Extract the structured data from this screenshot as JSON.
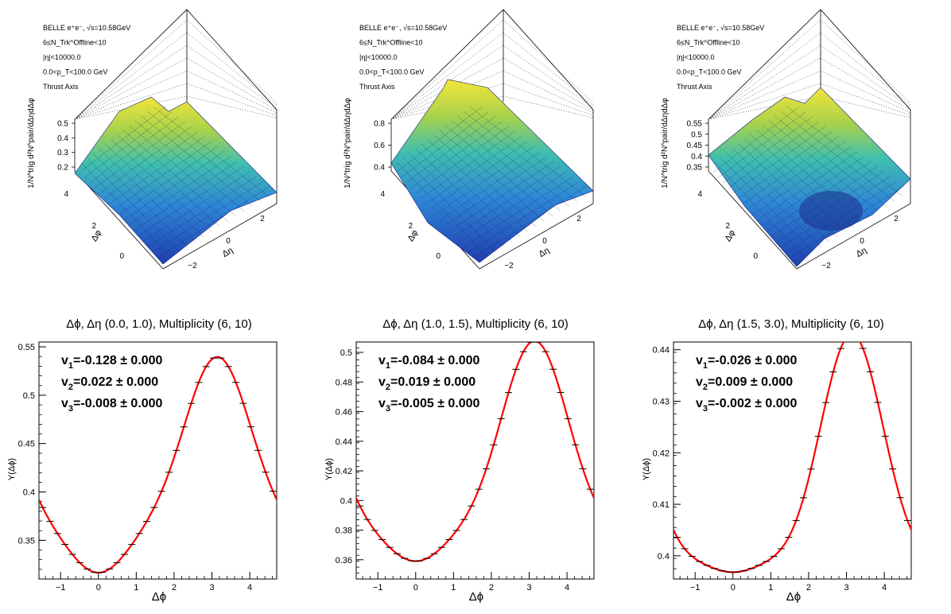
{
  "surface_panels": [
    {
      "info_lines": [
        "BELLE e⁺e⁻, √s=10.58GeV",
        "6≤N_Trk^Offline<10",
        "|η|<10000.0",
        "0.0<p_T<100.0 GeV",
        "Thrust Axis"
      ],
      "zlabel": "1/N^trig d²N^pair/dΔηdΔφ",
      "z_ticks": [
        "0.5",
        "0.4",
        "0.3",
        "0.2"
      ],
      "phi_ticks": [
        "4",
        "2",
        "0"
      ],
      "eta_ticks": [
        "2",
        "0",
        "−2"
      ],
      "dphi_label": "Δφ",
      "deta_label": "Δη"
    },
    {
      "info_lines": [
        "BELLE e⁺e⁻, √s=10.58GeV",
        "6≤N_Trk^Offline<10",
        "|η|<10000.0",
        "0.0<p_T<100.0 GeV",
        "Thrust Axis"
      ],
      "zlabel": "1/N^trig d²N^pair/dΔηdΔφ",
      "z_ticks": [
        "0.8",
        "0.6",
        "0.4"
      ],
      "phi_ticks": [
        "4",
        "2",
        "0"
      ],
      "eta_ticks": [
        "2",
        "0",
        "−2"
      ],
      "dphi_label": "Δφ",
      "deta_label": "Δη"
    },
    {
      "info_lines": [
        "BELLE e⁺e⁻, √s=10.58GeV",
        "6≤N_Trk^Offline<10",
        "|η|<10000.0",
        "0.0<p_T<100.0 GeV",
        "Thrust Axis"
      ],
      "zlabel": "1/N^trig d²N^pair/dΔηdΔφ",
      "z_ticks": [
        "0.55",
        "0.5",
        "0.45",
        "0.4",
        "0.35"
      ],
      "phi_ticks": [
        "4",
        "2",
        "0"
      ],
      "eta_ticks": [
        "2",
        "0",
        "−2"
      ],
      "dphi_label": "Δφ",
      "deta_label": "Δη"
    }
  ],
  "chart_data": [
    {
      "type": "line",
      "title": "Δϕ, Δη (0.0, 1.0), Multiplicity (6, 10)",
      "xlabel": "Δϕ",
      "ylabel": "Y(Δϕ)",
      "xlim": [
        -1.571,
        4.712
      ],
      "ylim": [
        0.31,
        0.555
      ],
      "x_ticks": [
        -1,
        0,
        1,
        2,
        3,
        4
      ],
      "y_ticks": [
        0.35,
        0.4,
        0.45,
        0.5,
        0.55
      ],
      "x_tick_labels": [
        "−1",
        "0",
        "1",
        "2",
        "3",
        "4"
      ],
      "y_tick_labels": [
        "0.35",
        "0.4",
        "0.45",
        "0.5",
        "0.55"
      ],
      "fit": {
        "v1": -0.128,
        "v2": 0.022,
        "v3": -0.008,
        "mean": 0.41
      },
      "annotations": [
        {
          "prefix": "v",
          "sub": "1",
          "value": "=-0.128 ± 0.000"
        },
        {
          "prefix": "v",
          "sub": "2",
          "value": "=0.022 ± 0.000"
        },
        {
          "prefix": "v",
          "sub": "3",
          "value": "=-0.008 ± 0.000"
        }
      ],
      "series": [
        {
          "color": "#ff0000"
        }
      ]
    },
    {
      "type": "line",
      "title": "Δϕ, Δη (1.0, 1.5), Multiplicity (6, 10)",
      "xlabel": "Δϕ",
      "ylabel": "Y(Δϕ)",
      "xlim": [
        -1.571,
        4.712
      ],
      "ylim": [
        0.347,
        0.507
      ],
      "x_ticks": [
        -1,
        0,
        1,
        2,
        3,
        4
      ],
      "y_ticks": [
        0.36,
        0.38,
        0.4,
        0.42,
        0.44,
        0.46,
        0.48,
        0.5
      ],
      "x_tick_labels": [
        "−1",
        "0",
        "1",
        "2",
        "3",
        "4"
      ],
      "y_tick_labels": [
        "0.36",
        "0.38",
        "0.4",
        "0.42",
        "0.44",
        "0.46",
        "0.48",
        "0.5"
      ],
      "fit": {
        "v1": -0.084,
        "v2": 0.019,
        "v3": -0.005,
        "mean": 0.4175
      },
      "annotations": [
        {
          "prefix": "v",
          "sub": "1",
          "value": "=-0.084 ± 0.000"
        },
        {
          "prefix": "v",
          "sub": "2",
          "value": "=0.019 ± 0.000"
        },
        {
          "prefix": "v",
          "sub": "3",
          "value": "=-0.005 ± 0.000"
        }
      ],
      "series": [
        {
          "color": "#ff0000"
        }
      ]
    },
    {
      "type": "line",
      "title": "Δϕ, Δη (1.5, 3.0), Multiplicity (6, 10)",
      "xlabel": "Δϕ",
      "ylabel": "Y(Δϕ)",
      "xlim": [
        -1.571,
        4.712
      ],
      "ylim": [
        0.3955,
        0.4415
      ],
      "x_ticks": [
        -1,
        0,
        1,
        2,
        3,
        4
      ],
      "y_ticks": [
        0.4,
        0.41,
        0.42,
        0.43,
        0.44
      ],
      "x_tick_labels": [
        "−1",
        "0",
        "1",
        "2",
        "3",
        "4"
      ],
      "y_tick_labels": [
        "0.4",
        "0.41",
        "0.42",
        "0.43",
        "0.44"
      ],
      "fit": {
        "v1": -0.026,
        "v2": 0.009,
        "v3": -0.002,
        "mean": 0.4125
      },
      "annotations": [
        {
          "prefix": "v",
          "sub": "1",
          "value": "=-0.026 ± 0.000"
        },
        {
          "prefix": "v",
          "sub": "2",
          "value": "=0.009 ± 0.000"
        },
        {
          "prefix": "v",
          "sub": "3",
          "value": "=-0.002 ± 0.000"
        }
      ],
      "series": [
        {
          "color": "#ff0000"
        }
      ]
    }
  ]
}
